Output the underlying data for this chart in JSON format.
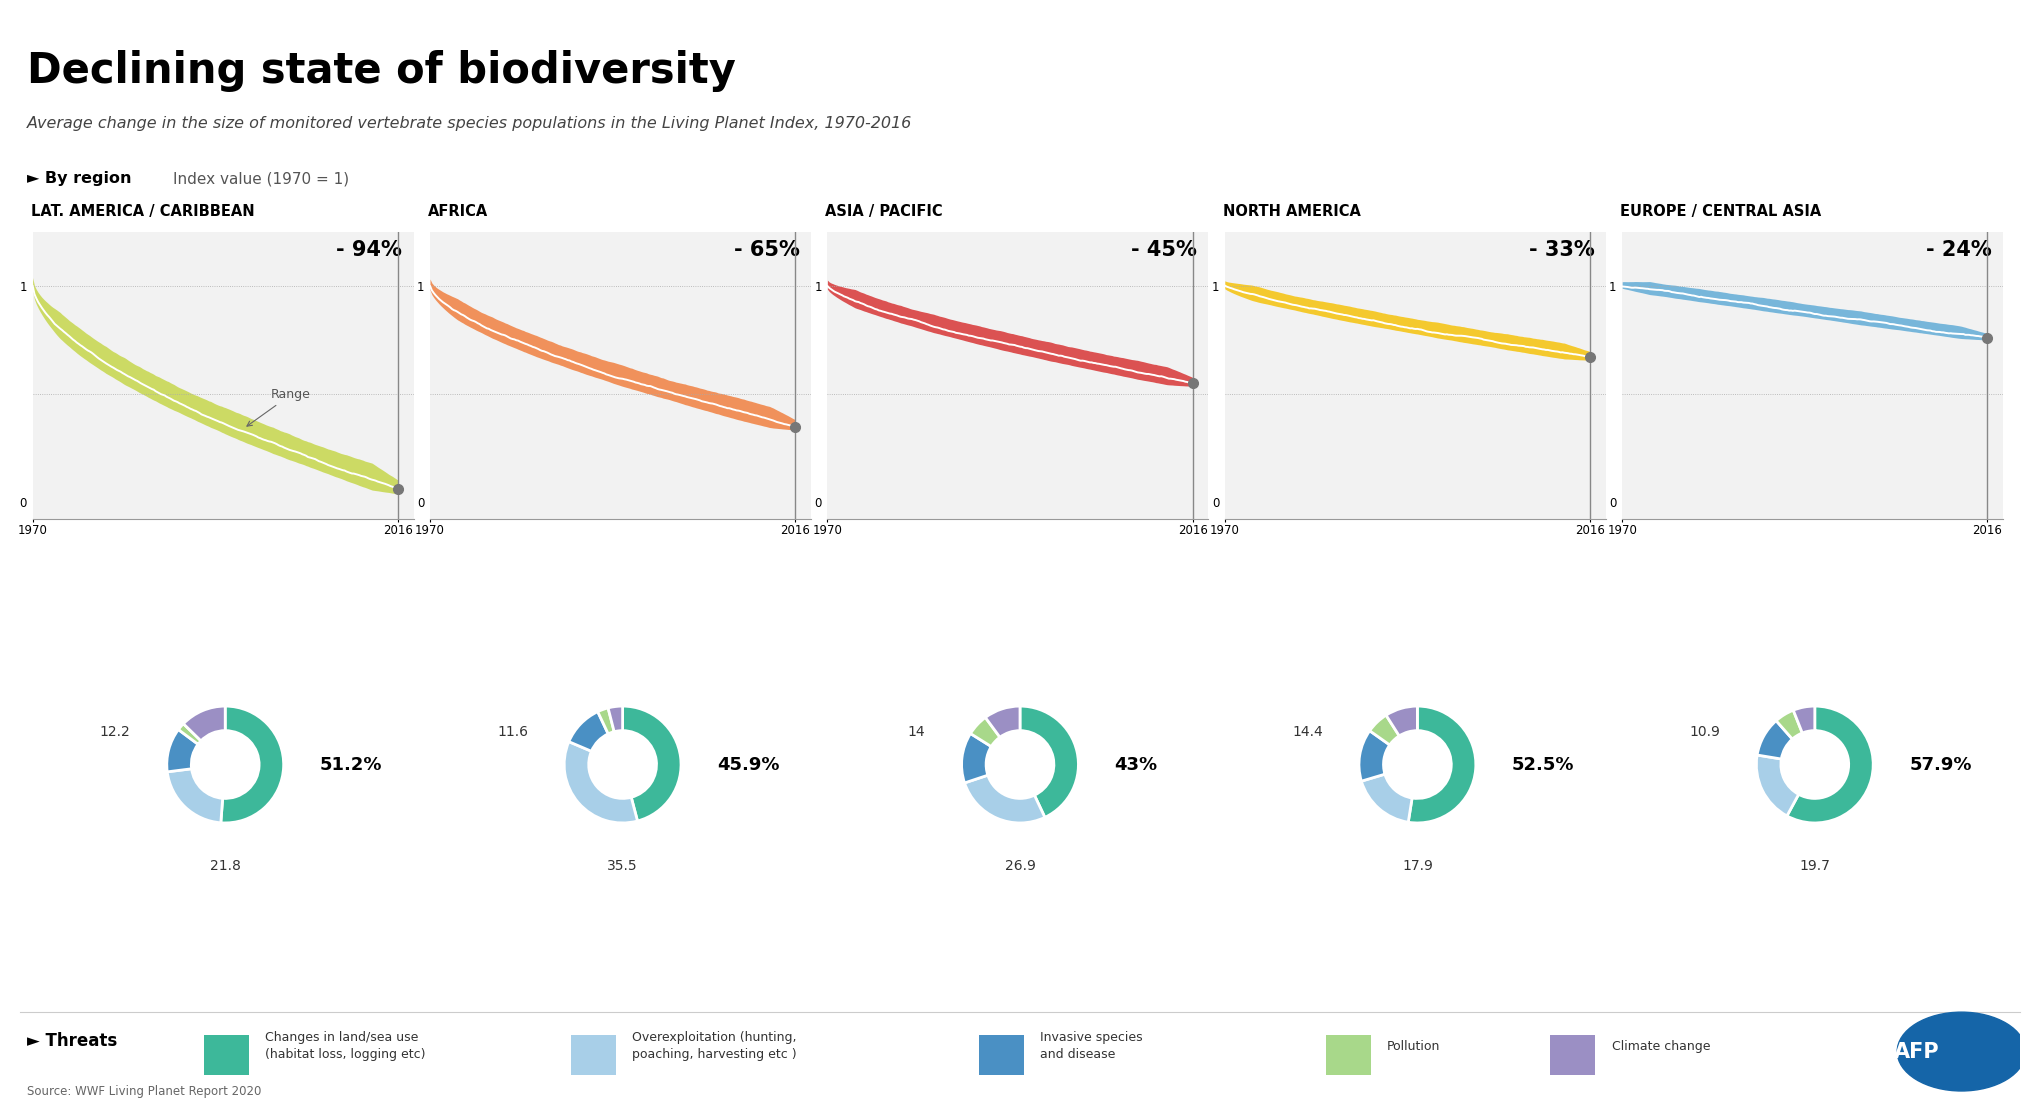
{
  "title": "Declining state of biodiversity",
  "subtitle": "Average change in the size of monitored vertebrate species populations in the Living Planet Index, 1970-2016",
  "by_region_label": "► By region",
  "index_label": "Index value (1970 = 1)",
  "regions": [
    "LAT. AMERICA / CARIBBEAN",
    "AFRICA",
    "ASIA / PACIFIC",
    "NORTH AMERICA",
    "EUROPE / CENTRAL ASIA"
  ],
  "declines": [
    "- 94%",
    "- 65%",
    "- 45%",
    "- 33%",
    "- 24%"
  ],
  "band_colors": [
    "#c8d855",
    "#f0874a",
    "#d94040",
    "#f5c518",
    "#6ab0d8"
  ],
  "white_line_color": "#ffffff",
  "donut_data": [
    {
      "values": [
        51.2,
        21.8,
        12.2,
        2.1,
        12.7
      ],
      "label_right": "51.2%",
      "label_left_top": "12.2",
      "label_bottom": "21.8"
    },
    {
      "values": [
        45.9,
        35.5,
        11.6,
        3.0,
        4.0
      ],
      "label_right": "45.9%",
      "label_left_top": "11.6",
      "label_bottom": "35.5"
    },
    {
      "values": [
        43.0,
        26.9,
        14.0,
        6.0,
        10.1
      ],
      "label_right": "43%",
      "label_left_top": "14",
      "label_bottom": "26.9"
    },
    {
      "values": [
        52.5,
        17.9,
        14.4,
        6.2,
        9.0
      ],
      "label_right": "52.5%",
      "label_left_top": "14.4",
      "label_bottom": "17.9"
    },
    {
      "values": [
        57.9,
        19.7,
        10.9,
        5.5,
        6.0
      ],
      "label_right": "57.9%",
      "label_left_top": "10.9",
      "label_bottom": "19.7"
    }
  ],
  "donut_colors": [
    "#3db89a",
    "#a8cfe8",
    "#4a90c4",
    "#a8d88a",
    "#9b8fc4"
  ],
  "panel_bg": "#f2f2f2",
  "source": "Source: WWF Living Planet Report 2020",
  "threats_label": "► Threats",
  "legend_items": [
    {
      "color": "#3db89a",
      "label": "Changes in land/sea use\n(habitat loss, logging etc)"
    },
    {
      "color": "#a8cfe8",
      "label": "Overexploitation (hunting,\npoaching, harvesting etc )"
    },
    {
      "color": "#4a90c4",
      "label": "Invasive species\nand disease"
    },
    {
      "color": "#a8d88a",
      "label": "Pollution"
    },
    {
      "color": "#9b8fc4",
      "label": "Climate change"
    }
  ],
  "afp_color": "#1565a8",
  "top_bar_color": "#1a1a1a"
}
